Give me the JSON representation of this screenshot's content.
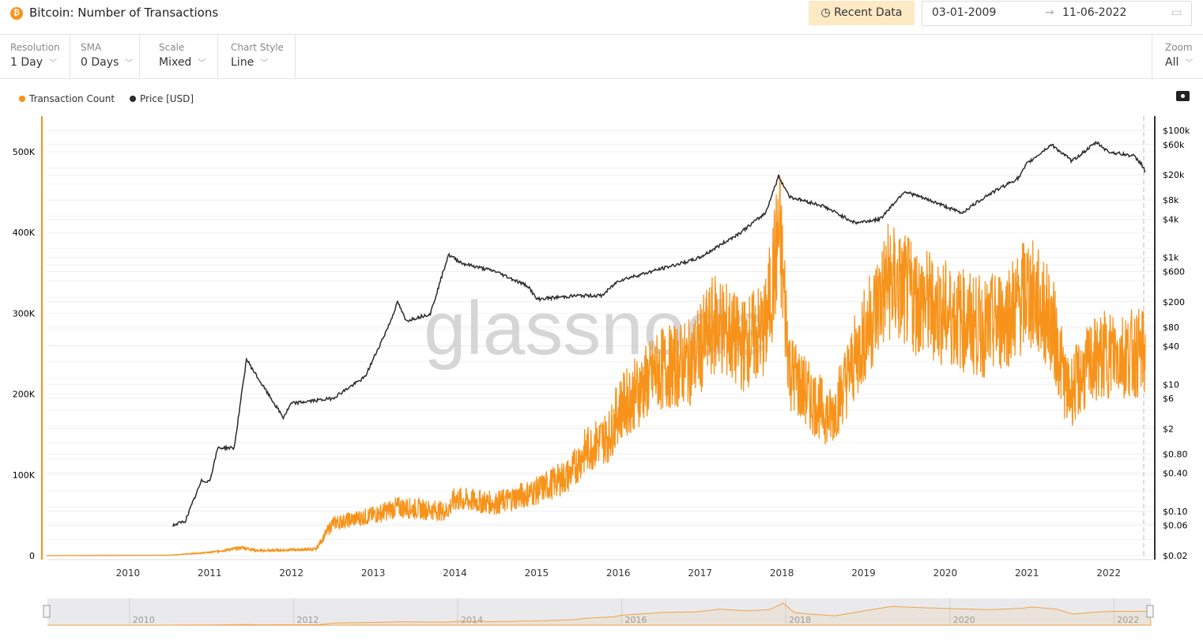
{
  "header": {
    "title": "Bitcoin: Number of Transactions",
    "btc_icon": "₿",
    "recent_label": "Recent Data",
    "date_from": "03-01-2009",
    "date_to": "11-06-2022"
  },
  "controls": [
    {
      "label": "Resolution",
      "value": "1 Day"
    },
    {
      "label": "SMA",
      "value": "0 Days"
    },
    {
      "label": "Scale",
      "value": "Mixed"
    },
    {
      "label": "Chart Style",
      "value": "Line"
    }
  ],
  "zoom": {
    "label": "Zoom",
    "value": "All"
  },
  "watermark": "glassnode",
  "colors": {
    "tx": "#f7931a",
    "price": "#2b2b2b"
  },
  "chart_data": {
    "type": "line",
    "title": "Bitcoin: Number of Transactions",
    "legend": [
      {
        "name": "Transaction Count",
        "color": "#f7931a"
      },
      {
        "name": "Price [USD]",
        "color": "#2b2b2b"
      }
    ],
    "legend_placement": "top-left",
    "x_ticks": [
      "2010",
      "2011",
      "2012",
      "2013",
      "2014",
      "2015",
      "2016",
      "2017",
      "2018",
      "2019",
      "2020",
      "2021",
      "2022"
    ],
    "xlim": [
      2009.0,
      2022.45
    ],
    "y_left": {
      "ticks": [
        "0",
        "100K",
        "200K",
        "300K",
        "400K",
        "500K"
      ],
      "tick_values": [
        0,
        100,
        200,
        300,
        400,
        500
      ],
      "unit": "thousand",
      "ylim": [
        0,
        500
      ]
    },
    "y_right": {
      "scale": "log",
      "ticks": [
        "$100k",
        "$60k",
        "$20k",
        "$8k",
        "$4k",
        "$1k",
        "$600",
        "$200",
        "$80",
        "$40",
        "$10",
        "$6",
        "$2",
        "$0.80",
        "$0.40",
        "$0.10",
        "$0.06",
        "$0.02"
      ],
      "tick_values": [
        100000,
        60000,
        20000,
        8000,
        4000,
        1000,
        600,
        200,
        80,
        40,
        10,
        6,
        2,
        0.8,
        0.4,
        0.1,
        0.06,
        0.02
      ],
      "ylim": [
        0.02,
        100000
      ]
    },
    "series": [
      {
        "name": "Transaction Count",
        "unit": "thousand",
        "x": [
          2009.0,
          2010.5,
          2011.0,
          2011.4,
          2011.6,
          2012.3,
          2012.5,
          2013.0,
          2013.3,
          2013.9,
          2014.0,
          2014.5,
          2015.0,
          2015.4,
          2015.6,
          2015.9,
          2016.0,
          2016.5,
          2016.9,
          2017.2,
          2017.5,
          2017.8,
          2017.97,
          2018.1,
          2018.3,
          2018.6,
          2019.0,
          2019.3,
          2019.6,
          2020.0,
          2020.5,
          2020.9,
          2021.0,
          2021.3,
          2021.5,
          2021.8,
          2022.0,
          2022.45
        ],
        "values": [
          0,
          0.5,
          4,
          10,
          6,
          8,
          40,
          50,
          60,
          55,
          70,
          65,
          80,
          100,
          130,
          150,
          180,
          230,
          240,
          290,
          260,
          280,
          400,
          230,
          200,
          170,
          270,
          340,
          320,
          300,
          280,
          310,
          330,
          290,
          200,
          240,
          250,
          250
        ]
      },
      {
        "name": "Price [USD]",
        "x": [
          2010.55,
          2010.7,
          2010.9,
          2011.0,
          2011.1,
          2011.3,
          2011.45,
          2011.6,
          2011.9,
          2012.0,
          2012.5,
          2012.9,
          2013.2,
          2013.3,
          2013.4,
          2013.7,
          2013.92,
          2014.1,
          2014.5,
          2014.9,
          2015.0,
          2015.5,
          2015.8,
          2016.0,
          2016.5,
          2016.9,
          2017.0,
          2017.5,
          2017.8,
          2017.96,
          2018.1,
          2018.5,
          2018.9,
          2019.2,
          2019.5,
          2019.9,
          2020.2,
          2020.5,
          2020.9,
          2021.0,
          2021.3,
          2021.55,
          2021.85,
          2022.0,
          2022.3,
          2022.4,
          2022.45
        ],
        "values": [
          0.06,
          0.07,
          0.3,
          0.3,
          1,
          1,
          25,
          12,
          3,
          5,
          6,
          13,
          90,
          200,
          100,
          130,
          1100,
          800,
          600,
          350,
          220,
          250,
          250,
          430,
          650,
          900,
          1000,
          2500,
          5000,
          19000,
          9000,
          6500,
          3500,
          4000,
          11000,
          7200,
          5000,
          9300,
          18000,
          30000,
          60000,
          33000,
          65000,
          46000,
          40000,
          30000,
          22000
        ]
      }
    ],
    "navigator_ticks": [
      "2010",
      "2012",
      "2014",
      "2016",
      "2018",
      "2020",
      "2022"
    ]
  }
}
